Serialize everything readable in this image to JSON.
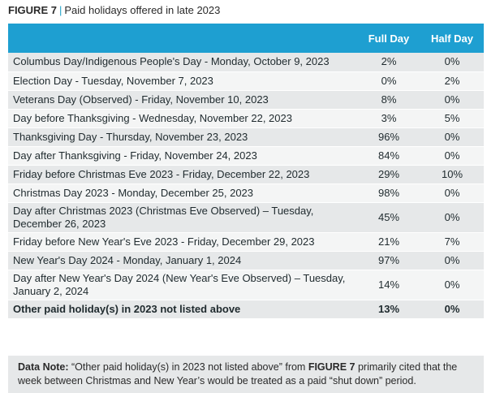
{
  "figure": {
    "label": "FIGURE 7",
    "separator": "|",
    "caption": "Paid holidays offered in late 2023"
  },
  "table": {
    "headers": [
      "",
      "Full Day",
      "Half Day"
    ],
    "rows": [
      {
        "holiday": "Columbus Day/Indigenous People's Day - Monday, October 9, 2023",
        "full_day": "2%",
        "half_day": "0%"
      },
      {
        "holiday": "Election Day - Tuesday, November 7, 2023",
        "full_day": "0%",
        "half_day": "2%"
      },
      {
        "holiday": "Veterans Day (Observed) - Friday, November 10, 2023",
        "full_day": "8%",
        "half_day": "0%"
      },
      {
        "holiday": "Day before Thanksgiving - Wednesday, November 22, 2023",
        "full_day": "3%",
        "half_day": "5%"
      },
      {
        "holiday": "Thanksgiving Day - Thursday, November 23, 2023",
        "full_day": "96%",
        "half_day": "0%"
      },
      {
        "holiday": "Day after Thanksgiving - Friday, November 24, 2023",
        "full_day": "84%",
        "half_day": "0%"
      },
      {
        "holiday": "Friday before Christmas Eve 2023 - Friday, December 22, 2023",
        "full_day": "29%",
        "half_day": "10%"
      },
      {
        "holiday": "Christmas Day 2023 - Monday, December 25, 2023",
        "full_day": "98%",
        "half_day": "0%"
      },
      {
        "holiday": "Day after Christmas 2023 (Christmas Eve Observed) – Tuesday, December 26, 2023",
        "full_day": "45%",
        "half_day": "0%"
      },
      {
        "holiday": "Friday before New Year's Eve 2023 - Friday, December 29, 2023",
        "full_day": "21%",
        "half_day": "7%"
      },
      {
        "holiday": "New Year's Day 2024 - Monday, January 1, 2024",
        "full_day": "97%",
        "half_day": "0%"
      },
      {
        "holiday": "Day after New Year's Day 2024 (New Year's Eve Observed) – Tuesday, January 2, 2024",
        "full_day": "14%",
        "half_day": "0%"
      },
      {
        "holiday": "Other paid holiday(s) in 2023 not listed above",
        "full_day": "13%",
        "half_day": "0%"
      }
    ]
  },
  "note": {
    "label": "Data Note:",
    "text_1": "“Other paid holiday(s) in 2023 not listed above” from",
    "figure_ref": "FIGURE 7",
    "text_2": "primarily cited that the week between Christmas and New Year’s would be treated as a paid “shut down” period."
  },
  "colors": {
    "header_bg": "#1e9fd1",
    "row_dark": "#e6e8e9",
    "row_light": "#f4f5f5",
    "accent": "#1fa3c9"
  }
}
